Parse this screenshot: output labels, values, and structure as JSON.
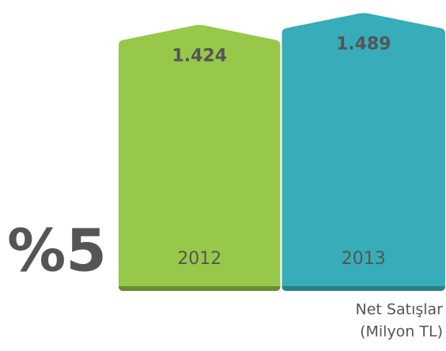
{
  "chart_data": {
    "type": "bar",
    "categories": [
      "2012",
      "2013"
    ],
    "values": [
      1424,
      1489
    ],
    "value_labels": [
      "1.424",
      "1.489"
    ],
    "colors": [
      "#97c84a",
      "#36adb8"
    ],
    "base_colors": [
      "#6b8c30",
      "#2a8088"
    ],
    "ylim": [
      0,
      1560
    ],
    "annotation": "%5",
    "axis_label": [
      "Net Satışlar",
      "(Milyon TL)"
    ]
  }
}
